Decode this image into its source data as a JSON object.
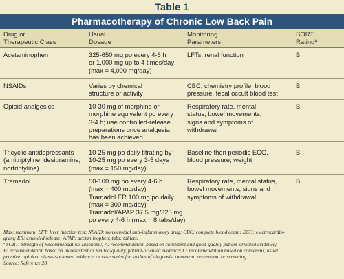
{
  "table_label": "Table 1",
  "title": "Pharmacotherapy of Chronic Low Back Pain",
  "headers": {
    "col1": [
      "Drug or",
      "Therapeutic Class"
    ],
    "col2": [
      "Usual",
      "Dosage"
    ],
    "col3": [
      "Monitoring",
      "Parameters"
    ],
    "col4": [
      "SORT",
      "Ratingª"
    ]
  },
  "rows": [
    {
      "drug": [
        "Acetaminophen"
      ],
      "dosage": [
        "325-650 mg po every 4-6 h",
        "or 1,000 mg up to 4 times/day",
        "(max = 4,000 mg/day)"
      ],
      "monitoring": [
        "LFTs, renal function"
      ],
      "sort": "B"
    },
    {
      "drug": [
        "NSAIDs"
      ],
      "dosage": [
        "Varies by chemical",
        "structure or activity"
      ],
      "monitoring": [
        "CBC, chemistry profile, blood",
        "pressure, fecal occult blood test"
      ],
      "sort": "B"
    },
    {
      "drug": [
        "Opioid analgesics"
      ],
      "dosage": [
        "10-30 mg of morphine or",
        "morphine equivalent po every",
        "3-4 h; use controlled-release",
        "preparations once analgesia",
        "has been achieved"
      ],
      "monitoring": [
        "Respiratory rate, mental",
        "status, bowel movements,",
        "signs and symptoms of",
        "withdrawal"
      ],
      "sort": "B"
    },
    {
      "drug": [
        "Tricyclic antidepressants",
        "(amitriptyline, desipramine,",
        "nortriptyline)"
      ],
      "dosage": [
        "10-25 mg po daily titrating by",
        "10-25 mg po every 3-5 days",
        "(max = 150 mg/day)"
      ],
      "monitoring": [
        "Baseline then periodic ECG,",
        "blood pressure, weight"
      ],
      "sort": "B"
    },
    {
      "drug": [
        "Tramadol"
      ],
      "dosage": [
        "50-100 mg po every 4-6 h",
        "(max = 400 mg/day)",
        "Tramadol ER 100 mg po daily",
        "(max = 300 mg/day)",
        "Tramadol/APAP 37.5 mg/325 mg",
        "po every 4-6 h (max = 8 tabs/day)"
      ],
      "monitoring": [
        "Respiratory rate, mental status,",
        "bowel movements, signs and",
        "symptoms of withdrawal"
      ],
      "sort": "B"
    }
  ],
  "footnotes": [
    "Max: maximum; LFT: liver function test; NSAID: nonsteroidal anti-inflammatory drug; CBC: complete blood count; ECG: electrocardio-",
    "gram; ER: extended release; APAP: acetaminophen; tabs: tablets.",
    "ª SORT: Strength of Recommendation Taxonomy; A: recommendation based on consistent and good-quality patient-oriented evidence;",
    "B: recommendation based on inconsistent or limited-quality, patient-oriented evidence; C: recommendation based on consensus, usual",
    "practice, opinion, disease-oriented evidence, or case series for studies of diagnosis, treatment, prevention, or screening.",
    "Source: Reference 28."
  ]
}
